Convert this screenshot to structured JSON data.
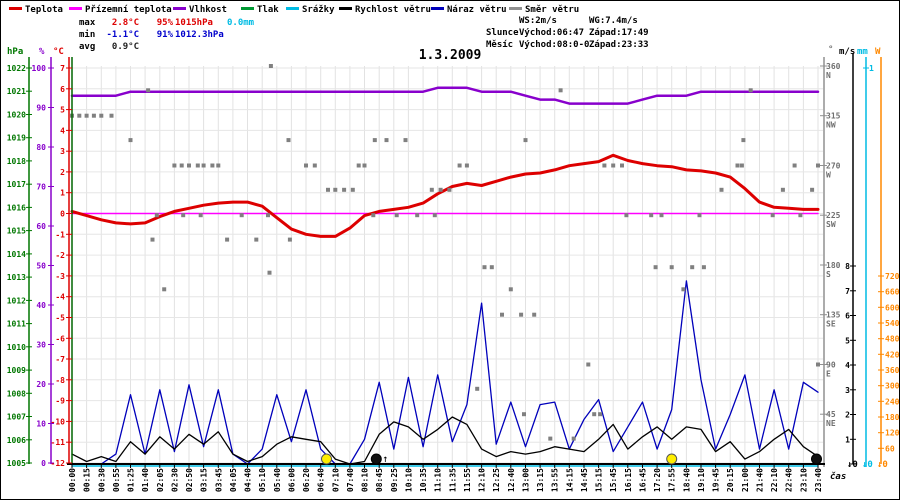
{
  "title": "1.3.2009",
  "legend": {
    "items": [
      {
        "label": "Teplota",
        "color": "#dd0000"
      },
      {
        "label": "Přízemní teplota",
        "color": "#ff00ff"
      },
      {
        "label": "Vlhkost",
        "color": "#8800cc"
      },
      {
        "label": "Tlak",
        "color": "#009933"
      },
      {
        "label": "Srážky",
        "color": "#00bce4"
      },
      {
        "label": "Rychlost větru",
        "color": "#000000"
      },
      {
        "label": "Náraz větru",
        "color": "#0000bb"
      },
      {
        "label": "Směr větru",
        "color": "#909090"
      }
    ]
  },
  "stats": {
    "max": {
      "label": "max",
      "temp": "2.8°C",
      "hum": "95%",
      "pres": "1015hPa",
      "precip": "0.0mm"
    },
    "min": {
      "label": "min",
      "temp": "-1.1°C",
      "hum": "91%",
      "pres": "1012.3hPa"
    },
    "avg": {
      "label": "avg",
      "temp": "0.9°C"
    },
    "wind": {
      "ws": "WS:2m/s",
      "wg": "WG:7.4m/s"
    },
    "sun": {
      "label": "Slunce",
      "rise": "Východ:06:47",
      "set": "Západ:17:49"
    },
    "moon": {
      "label": "Měsíc",
      "rise": "Východ:08:0-0",
      "set": "Západ:23:33"
    }
  },
  "axes_units": {
    "hpa": "hPa",
    "pct": "%",
    "degc": "°C",
    "deg": "°",
    "ms": "m/s",
    "mm": "mm",
    "w": "W"
  },
  "xaxis_label": "čas",
  "chart_data": {
    "type": "line",
    "title": "1.3.2009",
    "xlabel": "čas",
    "grid": true,
    "x": [
      "00:00",
      "00:15",
      "00:30",
      "00:55",
      "01:25",
      "01:40",
      "02:05",
      "02:30",
      "02:50",
      "03:15",
      "03:45",
      "04:05",
      "04:40",
      "05:10",
      "05:40",
      "06:00",
      "06:20",
      "06:40",
      "07:10",
      "07:40",
      "08:10",
      "08:45",
      "09:25",
      "10:10",
      "10:35",
      "11:10",
      "11:35",
      "11:55",
      "12:10",
      "12:25",
      "12:40",
      "13:00",
      "13:15",
      "13:55",
      "14:15",
      "14:45",
      "15:15",
      "15:45",
      "16:15",
      "16:45",
      "17:20",
      "17:55",
      "18:40",
      "19:10",
      "19:45",
      "20:15",
      "21:00",
      "21:40",
      "22:10",
      "22:40",
      "23:10",
      "23:40"
    ],
    "axes": {
      "pressure_hpa": {
        "min": 1005,
        "max": 1022,
        "step": 1,
        "unit": "hPa",
        "color": "#007700"
      },
      "humidity_pct": {
        "min": 0,
        "max": 100,
        "step": 10,
        "unit": "%",
        "color": "#8800cc"
      },
      "temp_c": {
        "min": -12,
        "max": 7,
        "step": 1,
        "unit": "°C",
        "color": "#dd0000"
      },
      "wind_dir_deg": {
        "min": 0,
        "max": 360,
        "unit": "°",
        "color": "#707070",
        "ticks": [
          {
            "deg": 360,
            "name": "N"
          },
          {
            "deg": 315,
            "name": "NW"
          },
          {
            "deg": 270,
            "name": "W"
          },
          {
            "deg": 225,
            "name": "SW"
          },
          {
            "deg": 180,
            "name": "S"
          },
          {
            "deg": 135,
            "name": "SE"
          },
          {
            "deg": 90,
            "name": "E"
          },
          {
            "deg": 45,
            "name": "NE"
          }
        ]
      },
      "wind_ms": {
        "min": 0,
        "max": 8,
        "step": 1,
        "unit": "m/s",
        "color": "#000000"
      },
      "precip_mm": {
        "min": 0,
        "max": 1,
        "step": 1,
        "unit": "mm",
        "color": "#00bce4"
      },
      "radiation_w": {
        "min": 0,
        "max": 720,
        "step": 60,
        "unit": "W",
        "color": "#ff8800"
      }
    },
    "series": [
      {
        "name": "Teplota",
        "unit": "°C",
        "color": "#dd0000",
        "width": 3,
        "values": [
          0.1,
          -0.1,
          -0.3,
          -0.45,
          -0.5,
          -0.45,
          -0.15,
          0.1,
          0.25,
          0.4,
          0.5,
          0.55,
          0.55,
          0.35,
          -0.2,
          -0.75,
          -1.0,
          -1.1,
          -1.1,
          -0.7,
          -0.1,
          0.1,
          0.2,
          0.3,
          0.5,
          0.95,
          1.3,
          1.45,
          1.35,
          1.55,
          1.75,
          1.9,
          1.95,
          2.1,
          2.3,
          2.4,
          2.5,
          2.8,
          2.55,
          2.4,
          2.3,
          2.25,
          2.1,
          2.05,
          1.95,
          1.75,
          1.2,
          0.55,
          0.3,
          0.25,
          0.2,
          0.2
        ]
      },
      {
        "name": "Přízemní teplota",
        "unit": "°C",
        "color": "#ff00ff",
        "width": 1.5,
        "values": 0.0
      },
      {
        "name": "Vlhkost",
        "unit": "%",
        "color": "#8800cc",
        "width": 2.5,
        "values": [
          93,
          93,
          93,
          93,
          94,
          94,
          94,
          94,
          94,
          94,
          94,
          94,
          94,
          94,
          94,
          94,
          94,
          94,
          94,
          94,
          94,
          94,
          94,
          94,
          94,
          95,
          95,
          95,
          94,
          94,
          94,
          93,
          92,
          92,
          91,
          91,
          91,
          91,
          91,
          92,
          93,
          93,
          93,
          94,
          94,
          94,
          94,
          94,
          94,
          94,
          94,
          94
        ]
      },
      {
        "name": "Tlak",
        "unit": "hPa",
        "color": "#009933",
        "visible_in_plot": false,
        "values": []
      },
      {
        "name": "Srážky",
        "unit": "mm",
        "color": "#00bce4",
        "width": 1.5,
        "values": 0.0
      },
      {
        "name": "Rychlost větru",
        "unit": "m/s",
        "color": "#000000",
        "width": 1.3,
        "values": [
          0.4,
          0.1,
          0.3,
          0.1,
          0.9,
          0.4,
          1.1,
          0.6,
          1.2,
          0.8,
          1.3,
          0.4,
          0.1,
          0.3,
          0.8,
          1.1,
          1.0,
          0.9,
          0.2,
          0.0,
          0.1,
          1.2,
          1.7,
          1.5,
          1.0,
          1.4,
          1.9,
          1.6,
          0.6,
          0.3,
          0.5,
          0.4,
          0.5,
          0.7,
          0.6,
          0.5,
          1.0,
          1.6,
          0.6,
          1.1,
          1.5,
          1.0,
          1.5,
          1.4,
          0.5,
          0.9,
          0.2,
          0.5,
          1.0,
          1.4,
          0.7,
          0.3
        ]
      },
      {
        "name": "Náraz větru",
        "unit": "m/s",
        "color": "#0000bb",
        "width": 1.3,
        "values": [
          0,
          0,
          0,
          0.4,
          2.8,
          0.4,
          3.0,
          0.5,
          3.2,
          0.7,
          3.0,
          0.4,
          0,
          0.6,
          2.8,
          0.9,
          3.0,
          0.6,
          0,
          0,
          1.0,
          3.3,
          0.6,
          3.5,
          0.7,
          3.6,
          0.9,
          2.4,
          6.5,
          0.8,
          2.5,
          0.7,
          2.4,
          2.5,
          0.6,
          1.8,
          2.6,
          0.5,
          1.5,
          2.5,
          0.6,
          2.2,
          7.4,
          3.4,
          0.6,
          2.0,
          3.6,
          0.6,
          3.0,
          0.6,
          3.3,
          2.9
        ]
      },
      {
        "name": "Směr větru",
        "unit": "°",
        "color": "#808080",
        "style": "dots",
        "points": [
          [
            0,
            315
          ],
          [
            0.5,
            315
          ],
          [
            1,
            315
          ],
          [
            1.5,
            315
          ],
          [
            2,
            315
          ],
          [
            2.7,
            315
          ],
          [
            4,
            293
          ],
          [
            5.2,
            338
          ],
          [
            5.5,
            203
          ],
          [
            5.8,
            225
          ],
          [
            6.3,
            158
          ],
          [
            7,
            270
          ],
          [
            7.5,
            270
          ],
          [
            7.6,
            225
          ],
          [
            8,
            270
          ],
          [
            8.6,
            270
          ],
          [
            8.8,
            225
          ],
          [
            9,
            270
          ],
          [
            9.6,
            270
          ],
          [
            10,
            270
          ],
          [
            10.6,
            203
          ],
          [
            11.6,
            225
          ],
          [
            12.6,
            203
          ],
          [
            13.4,
            225
          ],
          [
            13.5,
            173
          ],
          [
            13.6,
            360
          ],
          [
            14.8,
            293
          ],
          [
            14.9,
            203
          ],
          [
            16,
            270
          ],
          [
            16.6,
            270
          ],
          [
            17.5,
            248
          ],
          [
            18,
            248
          ],
          [
            18.6,
            248
          ],
          [
            19.2,
            248
          ],
          [
            19.6,
            270
          ],
          [
            20,
            270
          ],
          [
            20.6,
            225
          ],
          [
            20.7,
            293
          ],
          [
            21.5,
            293
          ],
          [
            22.2,
            225
          ],
          [
            22.8,
            293
          ],
          [
            23.6,
            225
          ],
          [
            24.6,
            248
          ],
          [
            24.8,
            225
          ],
          [
            25.2,
            248
          ],
          [
            25.8,
            248
          ],
          [
            26.5,
            270
          ],
          [
            27,
            270
          ],
          [
            27.7,
            68
          ],
          [
            28.2,
            178
          ],
          [
            28.7,
            178
          ],
          [
            29.4,
            135
          ],
          [
            30,
            158
          ],
          [
            30.7,
            135
          ],
          [
            30.9,
            45
          ],
          [
            31,
            293
          ],
          [
            31.6,
            135
          ],
          [
            32.7,
            23
          ],
          [
            33.4,
            338
          ],
          [
            34.3,
            23
          ],
          [
            35.3,
            90
          ],
          [
            35.7,
            45
          ],
          [
            36.1,
            45
          ],
          [
            36.4,
            270
          ],
          [
            37,
            270
          ],
          [
            37.6,
            270
          ],
          [
            37.9,
            225
          ],
          [
            39.6,
            225
          ],
          [
            39.9,
            178
          ],
          [
            40.3,
            225
          ],
          [
            41,
            178
          ],
          [
            41.8,
            158
          ],
          [
            42.4,
            178
          ],
          [
            42.9,
            225
          ],
          [
            43.2,
            178
          ],
          [
            44.4,
            248
          ],
          [
            45.5,
            270
          ],
          [
            45.8,
            270
          ],
          [
            45.9,
            293
          ],
          [
            46.4,
            338
          ],
          [
            47.9,
            225
          ],
          [
            48.6,
            248
          ],
          [
            49.4,
            270
          ],
          [
            49.8,
            225
          ],
          [
            50.6,
            248
          ],
          [
            51,
            270
          ],
          [
            51,
            90
          ]
        ]
      }
    ],
    "markers": [
      {
        "name": "sunrise",
        "symbol": "sun",
        "index": 17.4
      },
      {
        "name": "moonrise",
        "symbol": "moon",
        "index": 20.8,
        "arrow": "up"
      },
      {
        "name": "sunset",
        "symbol": "sun",
        "index": 41.0
      },
      {
        "name": "moonset",
        "symbol": "moon",
        "index": 50.9
      }
    ],
    "bottom_zero_markers": [
      {
        "axis": "m/s",
        "text": "0",
        "color": "#000000"
      },
      {
        "axis": "mm",
        "text": "0",
        "color": "#00bce4"
      },
      {
        "axis": "W",
        "text": "0",
        "color": "#ff8800"
      }
    ]
  }
}
